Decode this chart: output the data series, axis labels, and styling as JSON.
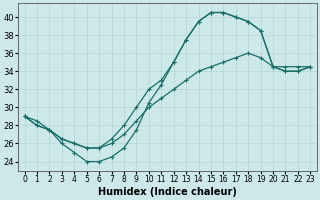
{
  "bg_color": "#cce8e8",
  "grid_color": "#b8d8d8",
  "line_color": "#1a6e6a",
  "xlabel": "Humidex (Indice chaleur)",
  "xlabel_fontsize": 7,
  "ytick_fontsize": 6,
  "xtick_fontsize": 5.5,
  "xlim": [
    -0.5,
    23.5
  ],
  "ylim": [
    23,
    41.5
  ],
  "yticks": [
    24,
    26,
    28,
    30,
    32,
    34,
    36,
    38,
    40
  ],
  "xticks": [
    0,
    1,
    2,
    3,
    4,
    5,
    6,
    7,
    8,
    9,
    10,
    11,
    12,
    13,
    14,
    15,
    16,
    17,
    18,
    19,
    20,
    21,
    22,
    23
  ],
  "curve1_x": [
    0,
    1,
    2,
    3,
    4,
    5,
    6,
    7,
    8,
    9,
    10,
    11,
    12,
    13,
    14,
    15,
    16,
    17,
    18,
    19,
    20,
    21,
    22,
    23
  ],
  "curve1_y": [
    29,
    28.5,
    27.5,
    26,
    25,
    24,
    24,
    24.5,
    25.5,
    27.5,
    30.5,
    32.5,
    35,
    37.5,
    39.5,
    40.5,
    40.5,
    40,
    39.5,
    38.5,
    34.5,
    34,
    34,
    34.5
  ],
  "curve2_x": [
    0,
    1,
    2,
    3,
    4,
    5,
    6,
    7,
    8,
    9,
    10,
    11,
    12,
    13,
    14,
    15,
    16,
    17,
    18,
    19,
    20,
    21,
    22,
    23
  ],
  "curve2_y": [
    29.0,
    28.0,
    27.5,
    26.5,
    26.0,
    25.5,
    25.5,
    26.0,
    27.0,
    28.5,
    30.0,
    31.0,
    32.0,
    33.0,
    34.0,
    34.5,
    35.0,
    35.5,
    36.0,
    35.5,
    34.5,
    34.5,
    34.5,
    34.5
  ],
  "curve3_x": [
    0,
    1,
    2,
    3,
    4,
    5,
    6,
    7,
    8,
    9,
    10,
    11,
    12,
    13,
    14,
    15,
    16,
    17,
    18,
    19,
    20,
    21,
    22,
    23
  ],
  "curve3_y": [
    29.0,
    28.0,
    27.5,
    26.5,
    26.0,
    25.5,
    25.5,
    26.5,
    28.0,
    30.0,
    32.0,
    33.0,
    35.0,
    37.5,
    39.5,
    40.5,
    40.5,
    40.0,
    39.5,
    38.5,
    34.5,
    34.0,
    34.0,
    34.5
  ]
}
